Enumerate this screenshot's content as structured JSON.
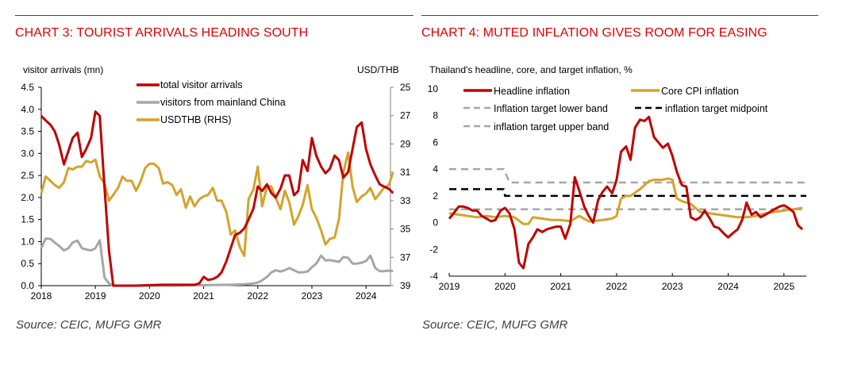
{
  "chart_data": [
    {
      "id": "chart3",
      "type": "line",
      "title": "CHART 3: TOURIST ARRIVALS HEADING SOUTH",
      "source": "Source: CEIC, MUFG GMR",
      "ylabel_left": "visitor arrivals (mn)",
      "ylabel_right": "USD/THB",
      "xlim": [
        2018.0,
        2024.58
      ],
      "ylim_left": [
        0.0,
        4.5
      ],
      "ylim_right": [
        25,
        39
      ],
      "right_axis_inverted": true,
      "grid": false,
      "legend_placement": "top-center",
      "x_ticks": [
        "2018",
        "2019",
        "2020",
        "2021",
        "2022",
        "2023",
        "2024"
      ],
      "y_ticks_left": [
        "0.0",
        "0.5",
        "1.0",
        "1.5",
        "2.0",
        "2.5",
        "3.0",
        "3.5",
        "4.0",
        "4.5"
      ],
      "y_ticks_right": [
        "25",
        "27",
        "29",
        "31",
        "33",
        "35",
        "37",
        "39"
      ],
      "series": [
        {
          "name": "total visitor arrivals",
          "axis": "left",
          "color": "#c00000",
          "x": [
            2018.0,
            2018.08,
            2018.17,
            2018.25,
            2018.33,
            2018.42,
            2018.5,
            2018.58,
            2018.67,
            2018.75,
            2018.83,
            2018.92,
            2019.0,
            2019.08,
            2019.17,
            2019.25,
            2019.33,
            2019.42,
            2019.5,
            2019.75,
            2020.0,
            2020.25,
            2020.5,
            2020.75,
            2020.83,
            2020.92,
            2021.0,
            2021.08,
            2021.17,
            2021.25,
            2021.33,
            2021.42,
            2021.5,
            2021.58,
            2021.67,
            2021.75,
            2021.83,
            2021.92,
            2022.0,
            2022.08,
            2022.17,
            2022.25,
            2022.33,
            2022.42,
            2022.5,
            2022.58,
            2022.67,
            2022.75,
            2022.83,
            2022.92,
            2023.0,
            2023.08,
            2023.17,
            2023.25,
            2023.33,
            2023.42,
            2023.5,
            2023.58,
            2023.67,
            2023.75,
            2023.83,
            2023.92,
            2024.0,
            2024.08,
            2024.17,
            2024.25,
            2024.33,
            2024.42,
            2024.5
          ],
          "values": [
            3.85,
            3.75,
            3.65,
            3.5,
            3.2,
            2.75,
            3.05,
            3.35,
            3.47,
            2.92,
            3.1,
            3.35,
            3.95,
            3.85,
            2.2,
            0.8,
            0.0,
            0.0,
            0.0,
            0.0,
            0.01,
            0.02,
            0.02,
            0.02,
            0.02,
            0.05,
            0.2,
            0.13,
            0.15,
            0.2,
            0.3,
            0.55,
            0.85,
            1.15,
            1.2,
            1.3,
            1.5,
            1.75,
            2.25,
            2.15,
            2.3,
            2.1,
            2.0,
            2.2,
            2.5,
            2.5,
            2.05,
            2.15,
            2.85,
            2.6,
            3.35,
            2.95,
            2.7,
            2.55,
            2.65,
            2.95,
            2.85,
            2.45,
            2.58,
            3.1,
            3.6,
            3.7,
            3.1,
            2.75,
            2.5,
            2.3,
            2.25,
            2.2,
            2.1
          ]
        },
        {
          "name": "visitors from mainland China",
          "axis": "left",
          "color": "#a6a6a6",
          "x": [
            2018.0,
            2018.08,
            2018.17,
            2018.25,
            2018.33,
            2018.42,
            2018.5,
            2018.58,
            2018.67,
            2018.75,
            2018.83,
            2018.92,
            2019.0,
            2019.08,
            2019.17,
            2019.25,
            2019.33,
            2019.42,
            2019.5,
            2020.0,
            2020.5,
            2021.0,
            2021.5,
            2021.75,
            2021.92,
            2022.0,
            2022.08,
            2022.17,
            2022.25,
            2022.33,
            2022.42,
            2022.5,
            2022.58,
            2022.67,
            2022.75,
            2022.83,
            2022.92,
            2023.0,
            2023.08,
            2023.17,
            2023.25,
            2023.33,
            2023.42,
            2023.5,
            2023.58,
            2023.67,
            2023.75,
            2023.83,
            2023.92,
            2024.0,
            2024.08,
            2024.17,
            2024.25,
            2024.33,
            2024.42,
            2024.5
          ],
          "values": [
            0.85,
            1.07,
            1.06,
            0.98,
            0.9,
            0.8,
            0.85,
            0.98,
            1.02,
            0.85,
            0.82,
            0.8,
            0.85,
            1.03,
            0.18,
            0.05,
            0.0,
            0.0,
            0.0,
            0.0,
            0.0,
            0.01,
            0.02,
            0.03,
            0.05,
            0.07,
            0.12,
            0.2,
            0.3,
            0.35,
            0.32,
            0.35,
            0.4,
            0.35,
            0.3,
            0.3,
            0.32,
            0.42,
            0.5,
            0.68,
            0.57,
            0.58,
            0.56,
            0.54,
            0.65,
            0.63,
            0.5,
            0.5,
            0.52,
            0.56,
            0.68,
            0.4,
            0.33,
            0.33,
            0.34,
            0.33
          ]
        },
        {
          "name": "USDTHB (RHS)",
          "axis": "right",
          "color": "#d4a32a",
          "x": [
            2018.0,
            2018.08,
            2018.17,
            2018.25,
            2018.33,
            2018.42,
            2018.5,
            2018.58,
            2018.67,
            2018.75,
            2018.83,
            2018.92,
            2019.0,
            2019.08,
            2019.17,
            2019.25,
            2019.33,
            2019.42,
            2019.5,
            2019.58,
            2019.67,
            2019.75,
            2019.83,
            2019.92,
            2020.0,
            2020.08,
            2020.17,
            2020.25,
            2020.33,
            2020.42,
            2020.5,
            2020.58,
            2020.67,
            2020.75,
            2020.83,
            2020.92,
            2021.0,
            2021.08,
            2021.17,
            2021.25,
            2021.33,
            2021.42,
            2021.5,
            2021.58,
            2021.67,
            2021.75,
            2021.83,
            2021.92,
            2022.0,
            2022.08,
            2022.17,
            2022.25,
            2022.33,
            2022.42,
            2022.5,
            2022.58,
            2022.67,
            2022.75,
            2022.83,
            2022.92,
            2023.0,
            2023.08,
            2023.17,
            2023.25,
            2023.33,
            2023.42,
            2023.5,
            2023.58,
            2023.67,
            2023.75,
            2023.83,
            2023.92,
            2024.0,
            2024.08,
            2024.17,
            2024.25,
            2024.33,
            2024.42,
            2024.5
          ],
          "values": [
            32.5,
            31.3,
            31.6,
            31.9,
            32.1,
            31.7,
            30.7,
            30.8,
            30.6,
            30.6,
            30.2,
            30.3,
            30.1,
            31.3,
            31.8,
            33.0,
            32.6,
            32.1,
            31.3,
            31.6,
            31.6,
            32.3,
            31.7,
            30.7,
            30.4,
            30.4,
            30.7,
            31.8,
            31.7,
            31.9,
            32.6,
            32.2,
            33.5,
            32.7,
            33.4,
            32.9,
            32.7,
            32.6,
            32.1,
            33.0,
            33.0,
            33.8,
            35.4,
            35.1,
            36.3,
            36.9,
            32.9,
            32.2,
            30.6,
            33.4,
            32.0,
            32.0,
            32.8,
            33.6,
            32.3,
            33.1,
            34.7,
            34.1,
            33.3,
            31.9,
            33.6,
            34.2,
            35.1,
            36.1,
            35.7,
            35.6,
            34.3,
            31.0,
            29.6,
            32.0,
            33.1,
            32.7,
            32.5,
            32.1,
            32.9,
            32.5,
            32.1,
            31.9,
            31.0
          ]
        }
      ]
    },
    {
      "id": "chart4",
      "type": "line",
      "title": "CHART 4: MUTED INFLATION GIVES ROOM FOR EASING",
      "subtitle": "Thailand's headline, core, and target inflation, %",
      "source": "Source: CEIC, MUFG GMR",
      "xlabel": "",
      "ylabel": "%",
      "xlim": [
        2019.0,
        2025.4
      ],
      "ylim": [
        -4,
        10
      ],
      "grid": false,
      "legend_placement": "top",
      "x_ticks": [
        "2019",
        "2020",
        "2021",
        "2022",
        "2023",
        "2024",
        "2025"
      ],
      "y_ticks": [
        "-4",
        "-2",
        "0",
        "2",
        "4",
        "6",
        "8",
        "10"
      ],
      "series": [
        {
          "name": "Headline inflation",
          "color": "#c00000",
          "style": "solid",
          "x": [
            2019.0,
            2019.08,
            2019.17,
            2019.25,
            2019.33,
            2019.42,
            2019.5,
            2019.58,
            2019.67,
            2019.75,
            2019.83,
            2019.92,
            2020.0,
            2020.08,
            2020.17,
            2020.25,
            2020.33,
            2020.42,
            2020.5,
            2020.58,
            2020.67,
            2020.75,
            2020.83,
            2020.92,
            2021.0,
            2021.08,
            2021.17,
            2021.25,
            2021.33,
            2021.42,
            2021.5,
            2021.58,
            2021.67,
            2021.75,
            2021.83,
            2021.92,
            2022.0,
            2022.08,
            2022.17,
            2022.25,
            2022.33,
            2022.42,
            2022.5,
            2022.58,
            2022.67,
            2022.75,
            2022.83,
            2022.92,
            2023.0,
            2023.08,
            2023.17,
            2023.25,
            2023.33,
            2023.42,
            2023.5,
            2023.58,
            2023.67,
            2023.75,
            2023.83,
            2023.92,
            2024.0,
            2024.08,
            2024.17,
            2024.25,
            2024.33,
            2024.42,
            2024.5,
            2024.58,
            2024.67,
            2024.75,
            2024.83,
            2024.92,
            2025.0,
            2025.08,
            2025.17,
            2025.25,
            2025.33
          ],
          "values": [
            0.3,
            0.7,
            1.2,
            1.2,
            1.1,
            0.9,
            0.9,
            0.5,
            0.3,
            0.1,
            0.2,
            0.9,
            1.1,
            0.7,
            -0.5,
            -3.0,
            -3.4,
            -1.6,
            -1.1,
            -0.5,
            -0.7,
            -0.5,
            -0.4,
            -0.3,
            -0.3,
            -1.2,
            -0.1,
            3.4,
            2.4,
            1.2,
            0.5,
            0.0,
            1.7,
            2.3,
            2.7,
            2.2,
            3.2,
            5.3,
            5.7,
            4.7,
            7.1,
            7.7,
            7.6,
            7.9,
            6.4,
            6.0,
            5.6,
            5.9,
            5.0,
            3.8,
            2.8,
            2.7,
            0.4,
            0.2,
            0.4,
            0.9,
            0.3,
            -0.3,
            -0.4,
            -0.8,
            -1.1,
            -0.8,
            -0.5,
            0.2,
            1.5,
            0.6,
            0.8,
            0.4,
            0.6,
            0.8,
            1.0,
            1.2,
            1.3,
            1.1,
            0.8,
            -0.2,
            -0.5
          ]
        },
        {
          "name": "Core CPI inflation",
          "color": "#d4a32a",
          "style": "solid",
          "x": [
            2019.0,
            2019.17,
            2019.33,
            2019.5,
            2019.67,
            2019.83,
            2020.0,
            2020.17,
            2020.33,
            2020.42,
            2020.5,
            2020.67,
            2020.83,
            2021.0,
            2021.17,
            2021.33,
            2021.5,
            2021.58,
            2021.75,
            2021.92,
            2022.0,
            2022.08,
            2022.17,
            2022.25,
            2022.42,
            2022.58,
            2022.67,
            2022.83,
            2022.92,
            2023.0,
            2023.08,
            2023.17,
            2023.33,
            2023.5,
            2023.67,
            2023.83,
            2024.0,
            2024.17,
            2024.33,
            2024.5,
            2024.67,
            2024.83,
            2025.0,
            2025.17,
            2025.33
          ],
          "values": [
            0.7,
            0.6,
            0.5,
            0.4,
            0.5,
            0.4,
            0.5,
            0.4,
            -0.1,
            -0.1,
            0.4,
            0.3,
            0.2,
            0.2,
            0.1,
            0.5,
            0.1,
            0.1,
            0.2,
            0.3,
            0.5,
            1.8,
            2.0,
            2.0,
            2.5,
            3.1,
            3.2,
            3.2,
            3.3,
            3.2,
            1.8,
            1.6,
            1.4,
            0.8,
            0.7,
            0.6,
            0.5,
            0.4,
            0.4,
            0.5,
            0.7,
            0.8,
            0.9,
            1.0,
            1.1
          ]
        },
        {
          "name": "Inflation target lower band",
          "color": "#a6a6a6",
          "style": "dashed",
          "x": [
            2019.0,
            2025.4
          ],
          "values": [
            1.0,
            1.0
          ]
        },
        {
          "name": "inflation target midpoint",
          "color": "#000000",
          "style": "dashed",
          "x": [
            2019.0,
            2019.98,
            2020.0,
            2025.4
          ],
          "values": [
            2.5,
            2.5,
            2.0,
            2.0
          ]
        },
        {
          "name": "inflation target upper band",
          "color": "#a6a6a6",
          "style": "dashed",
          "x": [
            2019.0,
            2019.98,
            2020.08,
            2025.4
          ],
          "values": [
            4.0,
            4.0,
            3.0,
            3.0
          ]
        }
      ]
    }
  ]
}
